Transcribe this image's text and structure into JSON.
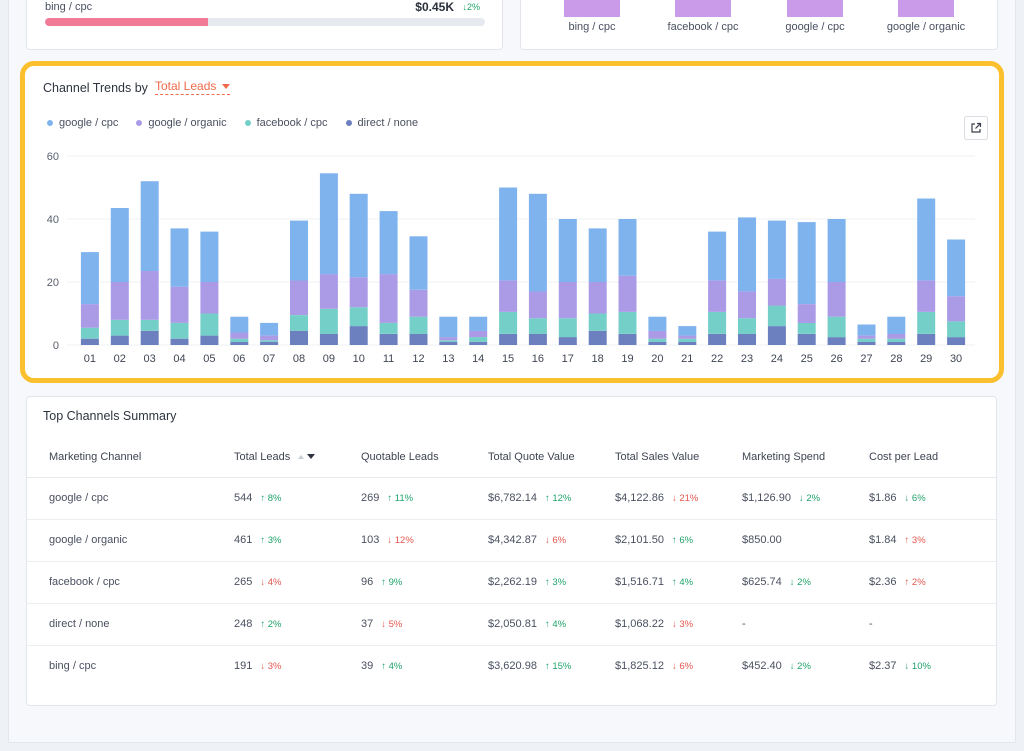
{
  "top_left_card": {
    "label": "bing / cpc",
    "value": "$0.45K",
    "delta_arrow": "↓",
    "delta": "2%",
    "bar_fill_percent": 37,
    "bar_color": "#f17b97"
  },
  "top_right_card": {
    "labels": [
      "bing / cpc",
      "facebook / cpc",
      "google / cpc",
      "google / organic"
    ],
    "bar_color": "#c99be8"
  },
  "channel_trends": {
    "title": "Channel Trends by",
    "metric_selected": "Total Leads",
    "export_icon": "external-link-icon",
    "legend": [
      {
        "name": "google / cpc",
        "color": "#7fb3ee"
      },
      {
        "name": "google / organic",
        "color": "#ab9be6"
      },
      {
        "name": "facebook / cpc",
        "color": "#74cfc8"
      },
      {
        "name": "direct / none",
        "color": "#6c7fbe"
      }
    ]
  },
  "chart_data": {
    "type": "bar",
    "stacked": true,
    "title": "Channel Trends by Total Leads",
    "categories": [
      "01",
      "02",
      "03",
      "04",
      "05",
      "06",
      "07",
      "08",
      "09",
      "10",
      "11",
      "12",
      "13",
      "14",
      "15",
      "16",
      "17",
      "18",
      "19",
      "20",
      "21",
      "22",
      "23",
      "24",
      "25",
      "26",
      "27",
      "28",
      "29",
      "30"
    ],
    "y_ticks": [
      0,
      20,
      40,
      60
    ],
    "ylim": [
      0,
      60
    ],
    "grid": true,
    "series": [
      {
        "name": "direct / none",
        "color": "#6c7fbe",
        "values": [
          2,
          3,
          4.5,
          2,
          3,
          1,
          1,
          4.5,
          3.5,
          6,
          3.5,
          3.5,
          1,
          1,
          3.5,
          3.5,
          2.5,
          4.5,
          3.5,
          1,
          1,
          3.5,
          3.5,
          6,
          3.5,
          2.5,
          1,
          1,
          3.5,
          2.5
        ]
      },
      {
        "name": "facebook / cpc",
        "color": "#74cfc8",
        "values": [
          3.5,
          5,
          3.5,
          5,
          7,
          1,
          0.5,
          5,
          8,
          6,
          3.5,
          5.5,
          0.5,
          1.5,
          7,
          5,
          6,
          5.5,
          7,
          1,
          1,
          7,
          5,
          6.5,
          3.5,
          6.5,
          1,
          1,
          7,
          5
        ]
      },
      {
        "name": "google / organic",
        "color": "#ab9be6",
        "values": [
          7.5,
          12,
          15.5,
          11.5,
          10,
          2,
          1.5,
          11,
          11,
          9.5,
          15.5,
          8.5,
          1,
          2,
          10,
          8.5,
          11.5,
          10,
          11.5,
          2.5,
          1,
          10,
          8.5,
          8.5,
          6,
          11,
          1,
          1.5,
          10,
          8
        ]
      },
      {
        "name": "google / cpc",
        "color": "#7fb3ee",
        "values": [
          16.5,
          23.5,
          28.5,
          18.5,
          16,
          5,
          4,
          19,
          32,
          26.5,
          20,
          17,
          6.5,
          4.5,
          29.5,
          31,
          20,
          17,
          18,
          4.5,
          3,
          15.5,
          23.5,
          18.5,
          26,
          20,
          3.5,
          5.5,
          26,
          18
        ]
      }
    ]
  },
  "summary": {
    "title": "Top Channels Summary",
    "columns": [
      "Marketing Channel",
      "Total Leads",
      "Quotable Leads",
      "Total Quote Value",
      "Total Sales Value",
      "Marketing Spend",
      "Cost per Lead"
    ],
    "rows": [
      {
        "channel": "google / cpc",
        "cells": [
          {
            "value": "544",
            "dir": "up",
            "delta": "8%"
          },
          {
            "value": "269",
            "dir": "up",
            "delta": "11%"
          },
          {
            "value": "$6,782.14",
            "dir": "up",
            "delta": "12%"
          },
          {
            "value": "$4,122.86",
            "dir": "down",
            "delta": "21%"
          },
          {
            "value": "$1,126.90",
            "dir": "down-good",
            "delta": "2%"
          },
          {
            "value": "$1.86",
            "dir": "down-good",
            "delta": "6%"
          }
        ]
      },
      {
        "channel": "google / organic",
        "cells": [
          {
            "value": "461",
            "dir": "up",
            "delta": "3%"
          },
          {
            "value": "103",
            "dir": "down",
            "delta": "12%"
          },
          {
            "value": "$4,342.87",
            "dir": "down",
            "delta": "6%"
          },
          {
            "value": "$2,101.50",
            "dir": "up",
            "delta": "6%"
          },
          {
            "value": "$850.00",
            "dir": "",
            "delta": ""
          },
          {
            "value": "$1.84",
            "dir": "up-bad",
            "delta": "3%"
          }
        ]
      },
      {
        "channel": "facebook / cpc",
        "cells": [
          {
            "value": "265",
            "dir": "down",
            "delta": "4%"
          },
          {
            "value": "96",
            "dir": "up",
            "delta": "9%"
          },
          {
            "value": "$2,262.19",
            "dir": "up",
            "delta": "3%"
          },
          {
            "value": "$1,516.71",
            "dir": "up",
            "delta": "4%"
          },
          {
            "value": "$625.74",
            "dir": "down-good",
            "delta": "2%"
          },
          {
            "value": "$2.36",
            "dir": "up-bad",
            "delta": "2%"
          }
        ]
      },
      {
        "channel": "direct / none",
        "cells": [
          {
            "value": "248",
            "dir": "up",
            "delta": "2%"
          },
          {
            "value": "37",
            "dir": "down",
            "delta": "5%"
          },
          {
            "value": "$2,050.81",
            "dir": "up",
            "delta": "4%"
          },
          {
            "value": "$1,068.22",
            "dir": "down",
            "delta": "3%"
          },
          {
            "value": "-",
            "dir": "",
            "delta": ""
          },
          {
            "value": "-",
            "dir": "",
            "delta": ""
          }
        ]
      },
      {
        "channel": "bing / cpc",
        "cells": [
          {
            "value": "191",
            "dir": "down",
            "delta": "3%"
          },
          {
            "value": "39",
            "dir": "up",
            "delta": "4%"
          },
          {
            "value": "$3,620.98",
            "dir": "up",
            "delta": "15%"
          },
          {
            "value": "$1,825.12",
            "dir": "down",
            "delta": "6%"
          },
          {
            "value": "$452.40",
            "dir": "down-good",
            "delta": "2%"
          },
          {
            "value": "$2.37",
            "dir": "down-good",
            "delta": "10%"
          }
        ]
      }
    ]
  }
}
